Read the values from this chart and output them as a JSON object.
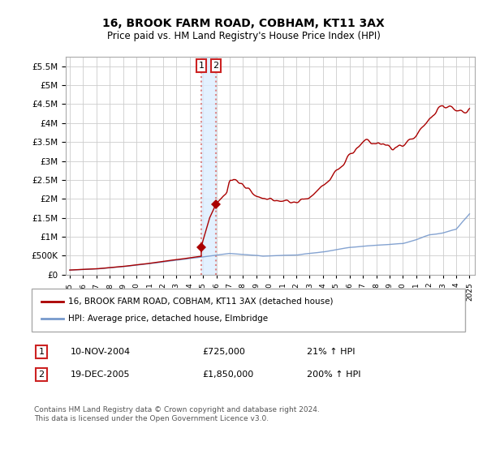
{
  "title": "16, BROOK FARM ROAD, COBHAM, KT11 3AX",
  "subtitle": "Price paid vs. HM Land Registry's House Price Index (HPI)",
  "legend_line1": "16, BROOK FARM ROAD, COBHAM, KT11 3AX (detached house)",
  "legend_line2": "HPI: Average price, detached house, Elmbridge",
  "annotation1_date": "10-NOV-2004",
  "annotation1_price": "£725,000",
  "annotation1_hpi": "21% ↑ HPI",
  "annotation2_date": "19-DEC-2005",
  "annotation2_price": "£1,850,000",
  "annotation2_hpi": "200% ↑ HPI",
  "footnote": "Contains HM Land Registry data © Crown copyright and database right 2024.\nThis data is licensed under the Open Government Licence v3.0.",
  "sale1_year": 2004.87,
  "sale1_price": 725000,
  "sale2_year": 2005.96,
  "sale2_price": 1850000,
  "red_color": "#aa0000",
  "blue_color": "#7799cc",
  "vline_color": "#dd8888",
  "vspan_color": "#ddeeff",
  "ylim_max": 5750000,
  "background_color": "#ffffff",
  "grid_color": "#cccccc"
}
